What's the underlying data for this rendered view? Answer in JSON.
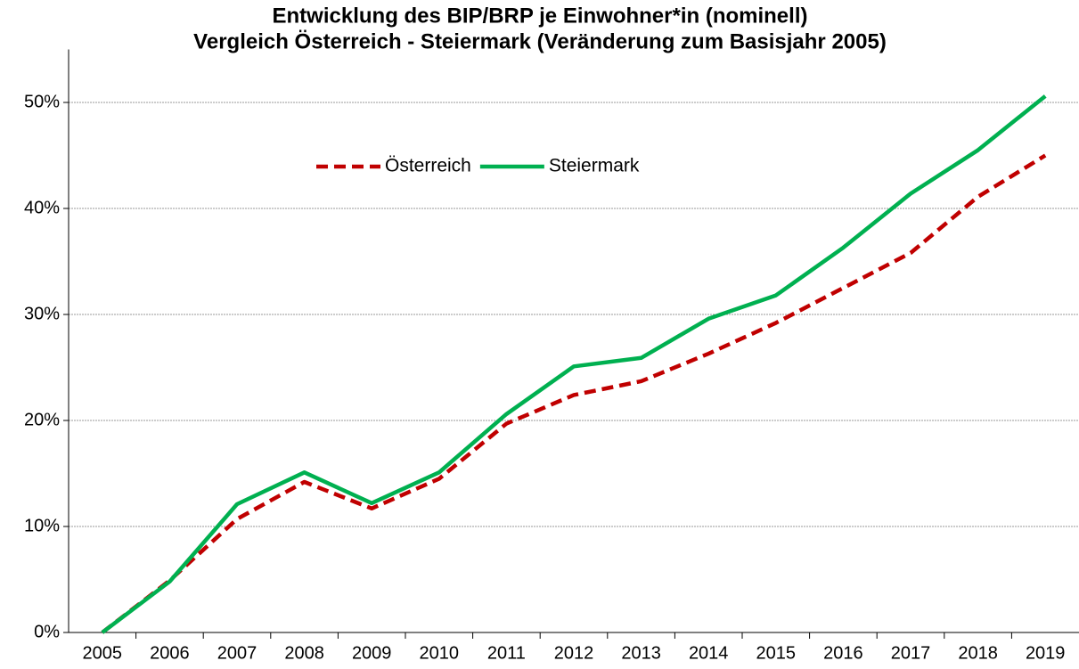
{
  "chart_data": {
    "type": "line",
    "title": [
      "Entwicklung des BIP/BRP je Einwohner*in (nominell)",
      "Vergleich Österreich - Steiermark (Veränderung zum Basisjahr 2005)"
    ],
    "categories": [
      "2005",
      "2006",
      "2007",
      "2008",
      "2009",
      "2010",
      "2011",
      "2012",
      "2013",
      "2014",
      "2015",
      "2016",
      "2017",
      "2018",
      "2019"
    ],
    "series": [
      {
        "name": "Österreich",
        "color": "#c00000",
        "dash": true,
        "values": [
          0,
          4.9,
          10.7,
          14.2,
          11.7,
          14.5,
          19.7,
          22.4,
          23.7,
          26.3,
          29.2,
          32.5,
          35.8,
          41.1,
          45.0
        ]
      },
      {
        "name": "Steiermark",
        "color": "#00b050",
        "dash": false,
        "values": [
          0,
          4.8,
          12.1,
          15.1,
          12.2,
          15.1,
          20.6,
          25.1,
          25.9,
          29.6,
          31.8,
          36.3,
          41.4,
          45.5,
          50.6
        ]
      }
    ],
    "ylim": [
      0,
      55
    ],
    "yticks": [
      {
        "value": 0,
        "label": "0%"
      },
      {
        "value": 10,
        "label": "10%"
      },
      {
        "value": 20,
        "label": "20%"
      },
      {
        "value": 30,
        "label": "30%"
      },
      {
        "value": 40,
        "label": "40%"
      },
      {
        "value": 50,
        "label": "50%"
      }
    ],
    "grid": true,
    "legend": "top"
  }
}
